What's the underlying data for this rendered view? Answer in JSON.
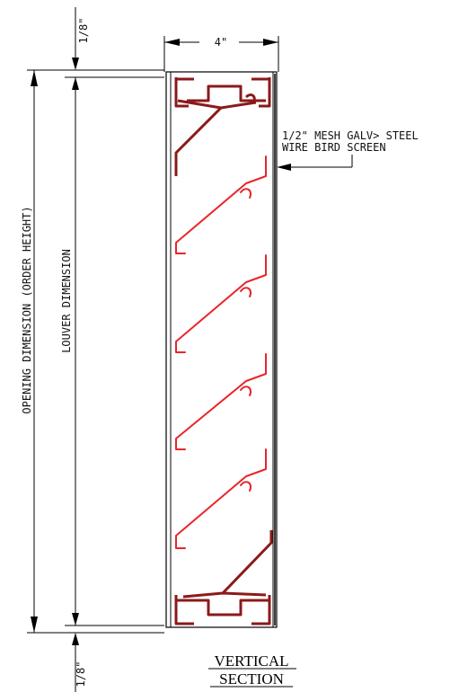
{
  "labels": {
    "top_gap": "1/8\"",
    "bottom_gap": "1/8\"",
    "depth": "4\"",
    "opening_dimension": "OPENING DIMENSION (ORDER HEIGHT)",
    "louver_dimension": "LOUVER DIMENSION",
    "screen_note_line1": "1/2\" MESH GALV> STEEL",
    "screen_note_line2": "WIRE BIRD SCREEN",
    "title_line1": "VERTICAL",
    "title_line2": "SECTION"
  },
  "colors": {
    "blade": "#e8262a",
    "frame_head_sill": "#8b1a1a",
    "lines": "#000000"
  }
}
